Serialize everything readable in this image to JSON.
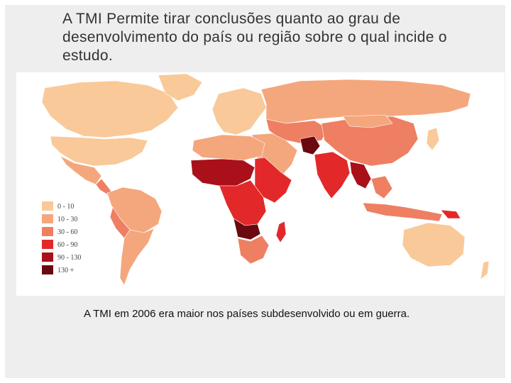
{
  "slide": {
    "title": "A TMI Permite tirar conclusões quanto ao grau de desenvolvimento do país ou região sobre o qual incide o estudo.",
    "caption": "A TMI em 2006 era maior nos países subdesenvolvido ou em guerra."
  },
  "legend": {
    "items": [
      {
        "label": "0 - 10",
        "color": "#f9c999"
      },
      {
        "label": "10 - 30",
        "color": "#f4a77c"
      },
      {
        "label": "30 - 60",
        "color": "#ee7f63"
      },
      {
        "label": "60 - 90",
        "color": "#e3282a"
      },
      {
        "label": "90 - 130",
        "color": "#a9101a"
      },
      {
        "label": "130 +",
        "color": "#6a0a10"
      }
    ]
  }
}
